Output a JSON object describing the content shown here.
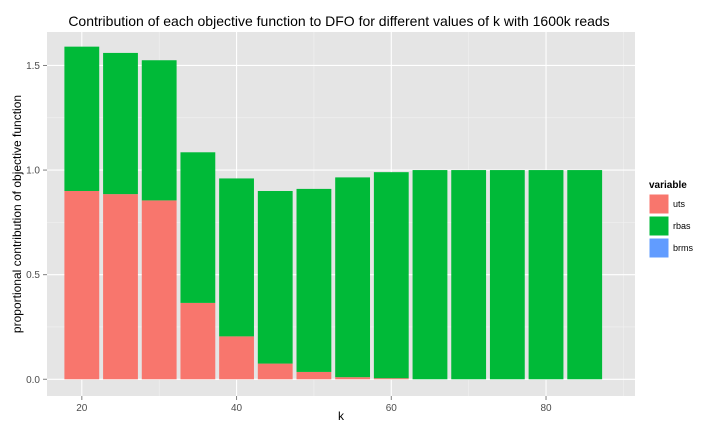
{
  "chart_data": {
    "type": "bar",
    "stacked": true,
    "title": "Contribution of each objective function to DFO for different values of k with 1600k reads",
    "xlabel": "k",
    "ylabel": "proportional contribution of objective function",
    "x": [
      20,
      25,
      30,
      35,
      40,
      45,
      50,
      55,
      60,
      65,
      70,
      75,
      80,
      85
    ],
    "xlim": [
      15.5,
      91.5
    ],
    "ylim": [
      -0.08,
      1.66
    ],
    "x_ticks": [
      20,
      40,
      60,
      80
    ],
    "x_tick_labels": [
      "20",
      "40",
      "60",
      "80"
    ],
    "y_ticks": [
      0.0,
      0.5,
      1.0,
      1.5
    ],
    "y_tick_labels": [
      "0.0",
      "0.5",
      "1.0",
      "1.5"
    ],
    "bar_width": 4.5,
    "grid": true,
    "legend_position": "right",
    "legend_title": "variable",
    "series": [
      {
        "name": "uts",
        "color": "#F8766D",
        "values": [
          0.9,
          0.885,
          0.855,
          0.365,
          0.205,
          0.075,
          0.035,
          0.01,
          0.005,
          0.0,
          0.0,
          0.0,
          0.0,
          0.0
        ]
      },
      {
        "name": "rbas",
        "color": "#00BA38",
        "values": [
          0.69,
          0.675,
          0.67,
          0.72,
          0.755,
          0.825,
          0.875,
          0.955,
          0.985,
          1.0,
          1.0,
          1.0,
          1.0,
          1.0
        ]
      },
      {
        "name": "brms",
        "color": "#619CFF",
        "values": [
          0,
          0,
          0,
          0,
          0,
          0,
          0,
          0,
          0,
          0,
          0,
          0,
          0,
          0
        ]
      }
    ],
    "panel_background": "#E5E5E5",
    "grid_major_color": "#FFFFFF",
    "grid_minor_color": "#F2F2F2"
  }
}
